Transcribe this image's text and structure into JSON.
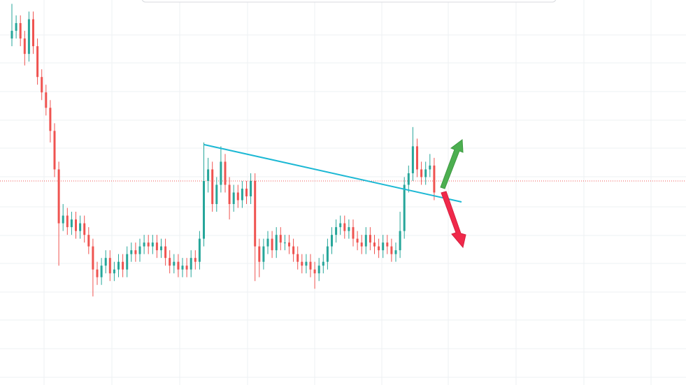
{
  "chart_data": {
    "type": "candlestick",
    "ylim": [
      0,
      100
    ],
    "up_color": "#26a69a",
    "down_color": "#ef5350",
    "price_line": 53,
    "price_line_color": "#ef5350",
    "series": [
      {
        "open": [
          90,
          92,
          94,
          90,
          86,
          95,
          88,
          80,
          76,
          72,
          66,
          56,
          42,
          44,
          41,
          43,
          40,
          42,
          39,
          36,
          30,
          28,
          31,
          33,
          29,
          30,
          32,
          30,
          34,
          35,
          34,
          36,
          37,
          36,
          37,
          35,
          36,
          33,
          31,
          32,
          30,
          31,
          30,
          33,
          32,
          38,
          53,
          56,
          47,
          52,
          58,
          52,
          47,
          50,
          48,
          51,
          49,
          53,
          36,
          32,
          36,
          38,
          35,
          39,
          37,
          37,
          36,
          34,
          32,
          31,
          32,
          30,
          29,
          31,
          32,
          36,
          39,
          41,
          42,
          40,
          41,
          38,
          37,
          36,
          39,
          37,
          36,
          35,
          37,
          36,
          34,
          35,
          40,
          52,
          55,
          62,
          56,
          54,
          56,
          57
        ],
        "high": [
          99,
          96,
          96,
          92,
          97,
          97,
          90,
          82,
          78,
          74,
          68,
          58,
          47,
          46,
          45,
          45,
          44,
          44,
          41,
          38,
          32,
          33,
          35,
          35,
          32,
          34,
          34,
          36,
          37,
          37,
          38,
          39,
          39,
          39,
          39,
          38,
          38,
          35,
          34,
          34,
          33,
          33,
          35,
          35,
          40,
          63,
          59,
          58,
          54,
          62,
          60,
          54,
          52,
          52,
          53,
          53,
          55,
          55,
          38,
          38,
          40,
          40,
          41,
          41,
          39,
          39,
          38,
          36,
          34,
          34,
          34,
          32,
          33,
          34,
          38,
          41,
          43,
          44,
          44,
          43,
          43,
          40,
          39,
          41,
          41,
          39,
          38,
          39,
          39,
          38,
          37,
          45,
          54,
          57,
          67,
          64,
          58,
          58,
          60,
          59
        ],
        "low": [
          88,
          90,
          88,
          83,
          84,
          86,
          78,
          74,
          70,
          63,
          54,
          31,
          40,
          39,
          39,
          38,
          38,
          37,
          34,
          23,
          26,
          26,
          29,
          27,
          27,
          28,
          28,
          28,
          32,
          32,
          32,
          34,
          34,
          34,
          33,
          33,
          31,
          29,
          29,
          28,
          28,
          28,
          28,
          30,
          30,
          36,
          50,
          45,
          45,
          50,
          50,
          43,
          45,
          46,
          46,
          47,
          47,
          27,
          28,
          30,
          34,
          33,
          33,
          35,
          35,
          34,
          32,
          30,
          29,
          29,
          28,
          25,
          27,
          29,
          30,
          34,
          37,
          39,
          38,
          38,
          36,
          35,
          34,
          34,
          35,
          34,
          33,
          33,
          34,
          32,
          32,
          33,
          38,
          50,
          53,
          54,
          52,
          52,
          54,
          48
        ],
        "close": [
          92,
          94,
          90,
          86,
          95,
          88,
          80,
          76,
          72,
          66,
          56,
          42,
          44,
          41,
          43,
          40,
          42,
          39,
          36,
          30,
          28,
          31,
          33,
          29,
          30,
          32,
          30,
          34,
          35,
          34,
          36,
          37,
          36,
          37,
          35,
          36,
          33,
          31,
          32,
          30,
          31,
          30,
          33,
          32,
          38,
          53,
          56,
          47,
          52,
          58,
          52,
          47,
          50,
          48,
          51,
          49,
          53,
          36,
          32,
          36,
          38,
          35,
          39,
          37,
          37,
          36,
          34,
          32,
          31,
          32,
          30,
          29,
          31,
          32,
          36,
          39,
          41,
          42,
          40,
          41,
          38,
          37,
          36,
          39,
          37,
          36,
          35,
          37,
          36,
          34,
          35,
          40,
          52,
          55,
          62,
          56,
          54,
          56,
          57,
          50
        ]
      }
    ]
  }
}
